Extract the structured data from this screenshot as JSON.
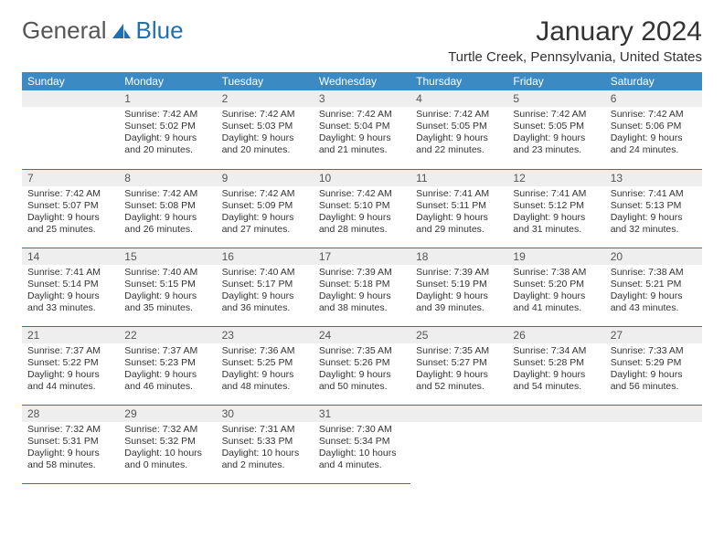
{
  "logo": {
    "word1": "General",
    "word2": "Blue"
  },
  "title": "January 2024",
  "location": "Turtle Creek, Pennsylvania, United States",
  "colors": {
    "header_bg": "#3b8ac4",
    "header_fg": "#ffffff",
    "daynum_bg": "#eeeeee",
    "row_border": "#3b6f9c",
    "logo_blue": "#1f6fb2"
  },
  "weekdays": [
    "Sunday",
    "Monday",
    "Tuesday",
    "Wednesday",
    "Thursday",
    "Friday",
    "Saturday"
  ],
  "weeks": [
    [
      null,
      {
        "n": "1",
        "sr": "7:42 AM",
        "ss": "5:02 PM",
        "dl": "9 hours and 20 minutes."
      },
      {
        "n": "2",
        "sr": "7:42 AM",
        "ss": "5:03 PM",
        "dl": "9 hours and 20 minutes."
      },
      {
        "n": "3",
        "sr": "7:42 AM",
        "ss": "5:04 PM",
        "dl": "9 hours and 21 minutes."
      },
      {
        "n": "4",
        "sr": "7:42 AM",
        "ss": "5:05 PM",
        "dl": "9 hours and 22 minutes."
      },
      {
        "n": "5",
        "sr": "7:42 AM",
        "ss": "5:05 PM",
        "dl": "9 hours and 23 minutes."
      },
      {
        "n": "6",
        "sr": "7:42 AM",
        "ss": "5:06 PM",
        "dl": "9 hours and 24 minutes."
      }
    ],
    [
      {
        "n": "7",
        "sr": "7:42 AM",
        "ss": "5:07 PM",
        "dl": "9 hours and 25 minutes."
      },
      {
        "n": "8",
        "sr": "7:42 AM",
        "ss": "5:08 PM",
        "dl": "9 hours and 26 minutes."
      },
      {
        "n": "9",
        "sr": "7:42 AM",
        "ss": "5:09 PM",
        "dl": "9 hours and 27 minutes."
      },
      {
        "n": "10",
        "sr": "7:42 AM",
        "ss": "5:10 PM",
        "dl": "9 hours and 28 minutes."
      },
      {
        "n": "11",
        "sr": "7:41 AM",
        "ss": "5:11 PM",
        "dl": "9 hours and 29 minutes."
      },
      {
        "n": "12",
        "sr": "7:41 AM",
        "ss": "5:12 PM",
        "dl": "9 hours and 31 minutes."
      },
      {
        "n": "13",
        "sr": "7:41 AM",
        "ss": "5:13 PM",
        "dl": "9 hours and 32 minutes."
      }
    ],
    [
      {
        "n": "14",
        "sr": "7:41 AM",
        "ss": "5:14 PM",
        "dl": "9 hours and 33 minutes."
      },
      {
        "n": "15",
        "sr": "7:40 AM",
        "ss": "5:15 PM",
        "dl": "9 hours and 35 minutes."
      },
      {
        "n": "16",
        "sr": "7:40 AM",
        "ss": "5:17 PM",
        "dl": "9 hours and 36 minutes."
      },
      {
        "n": "17",
        "sr": "7:39 AM",
        "ss": "5:18 PM",
        "dl": "9 hours and 38 minutes."
      },
      {
        "n": "18",
        "sr": "7:39 AM",
        "ss": "5:19 PM",
        "dl": "9 hours and 39 minutes."
      },
      {
        "n": "19",
        "sr": "7:38 AM",
        "ss": "5:20 PM",
        "dl": "9 hours and 41 minutes."
      },
      {
        "n": "20",
        "sr": "7:38 AM",
        "ss": "5:21 PM",
        "dl": "9 hours and 43 minutes."
      }
    ],
    [
      {
        "n": "21",
        "sr": "7:37 AM",
        "ss": "5:22 PM",
        "dl": "9 hours and 44 minutes."
      },
      {
        "n": "22",
        "sr": "7:37 AM",
        "ss": "5:23 PM",
        "dl": "9 hours and 46 minutes."
      },
      {
        "n": "23",
        "sr": "7:36 AM",
        "ss": "5:25 PM",
        "dl": "9 hours and 48 minutes."
      },
      {
        "n": "24",
        "sr": "7:35 AM",
        "ss": "5:26 PM",
        "dl": "9 hours and 50 minutes."
      },
      {
        "n": "25",
        "sr": "7:35 AM",
        "ss": "5:27 PM",
        "dl": "9 hours and 52 minutes."
      },
      {
        "n": "26",
        "sr": "7:34 AM",
        "ss": "5:28 PM",
        "dl": "9 hours and 54 minutes."
      },
      {
        "n": "27",
        "sr": "7:33 AM",
        "ss": "5:29 PM",
        "dl": "9 hours and 56 minutes."
      }
    ],
    [
      {
        "n": "28",
        "sr": "7:32 AM",
        "ss": "5:31 PM",
        "dl": "9 hours and 58 minutes."
      },
      {
        "n": "29",
        "sr": "7:32 AM",
        "ss": "5:32 PM",
        "dl": "10 hours and 0 minutes."
      },
      {
        "n": "30",
        "sr": "7:31 AM",
        "ss": "5:33 PM",
        "dl": "10 hours and 2 minutes."
      },
      {
        "n": "31",
        "sr": "7:30 AM",
        "ss": "5:34 PM",
        "dl": "10 hours and 4 minutes."
      },
      null,
      null,
      null
    ]
  ],
  "labels": {
    "sunrise": "Sunrise:",
    "sunset": "Sunset:",
    "daylight": "Daylight:"
  }
}
